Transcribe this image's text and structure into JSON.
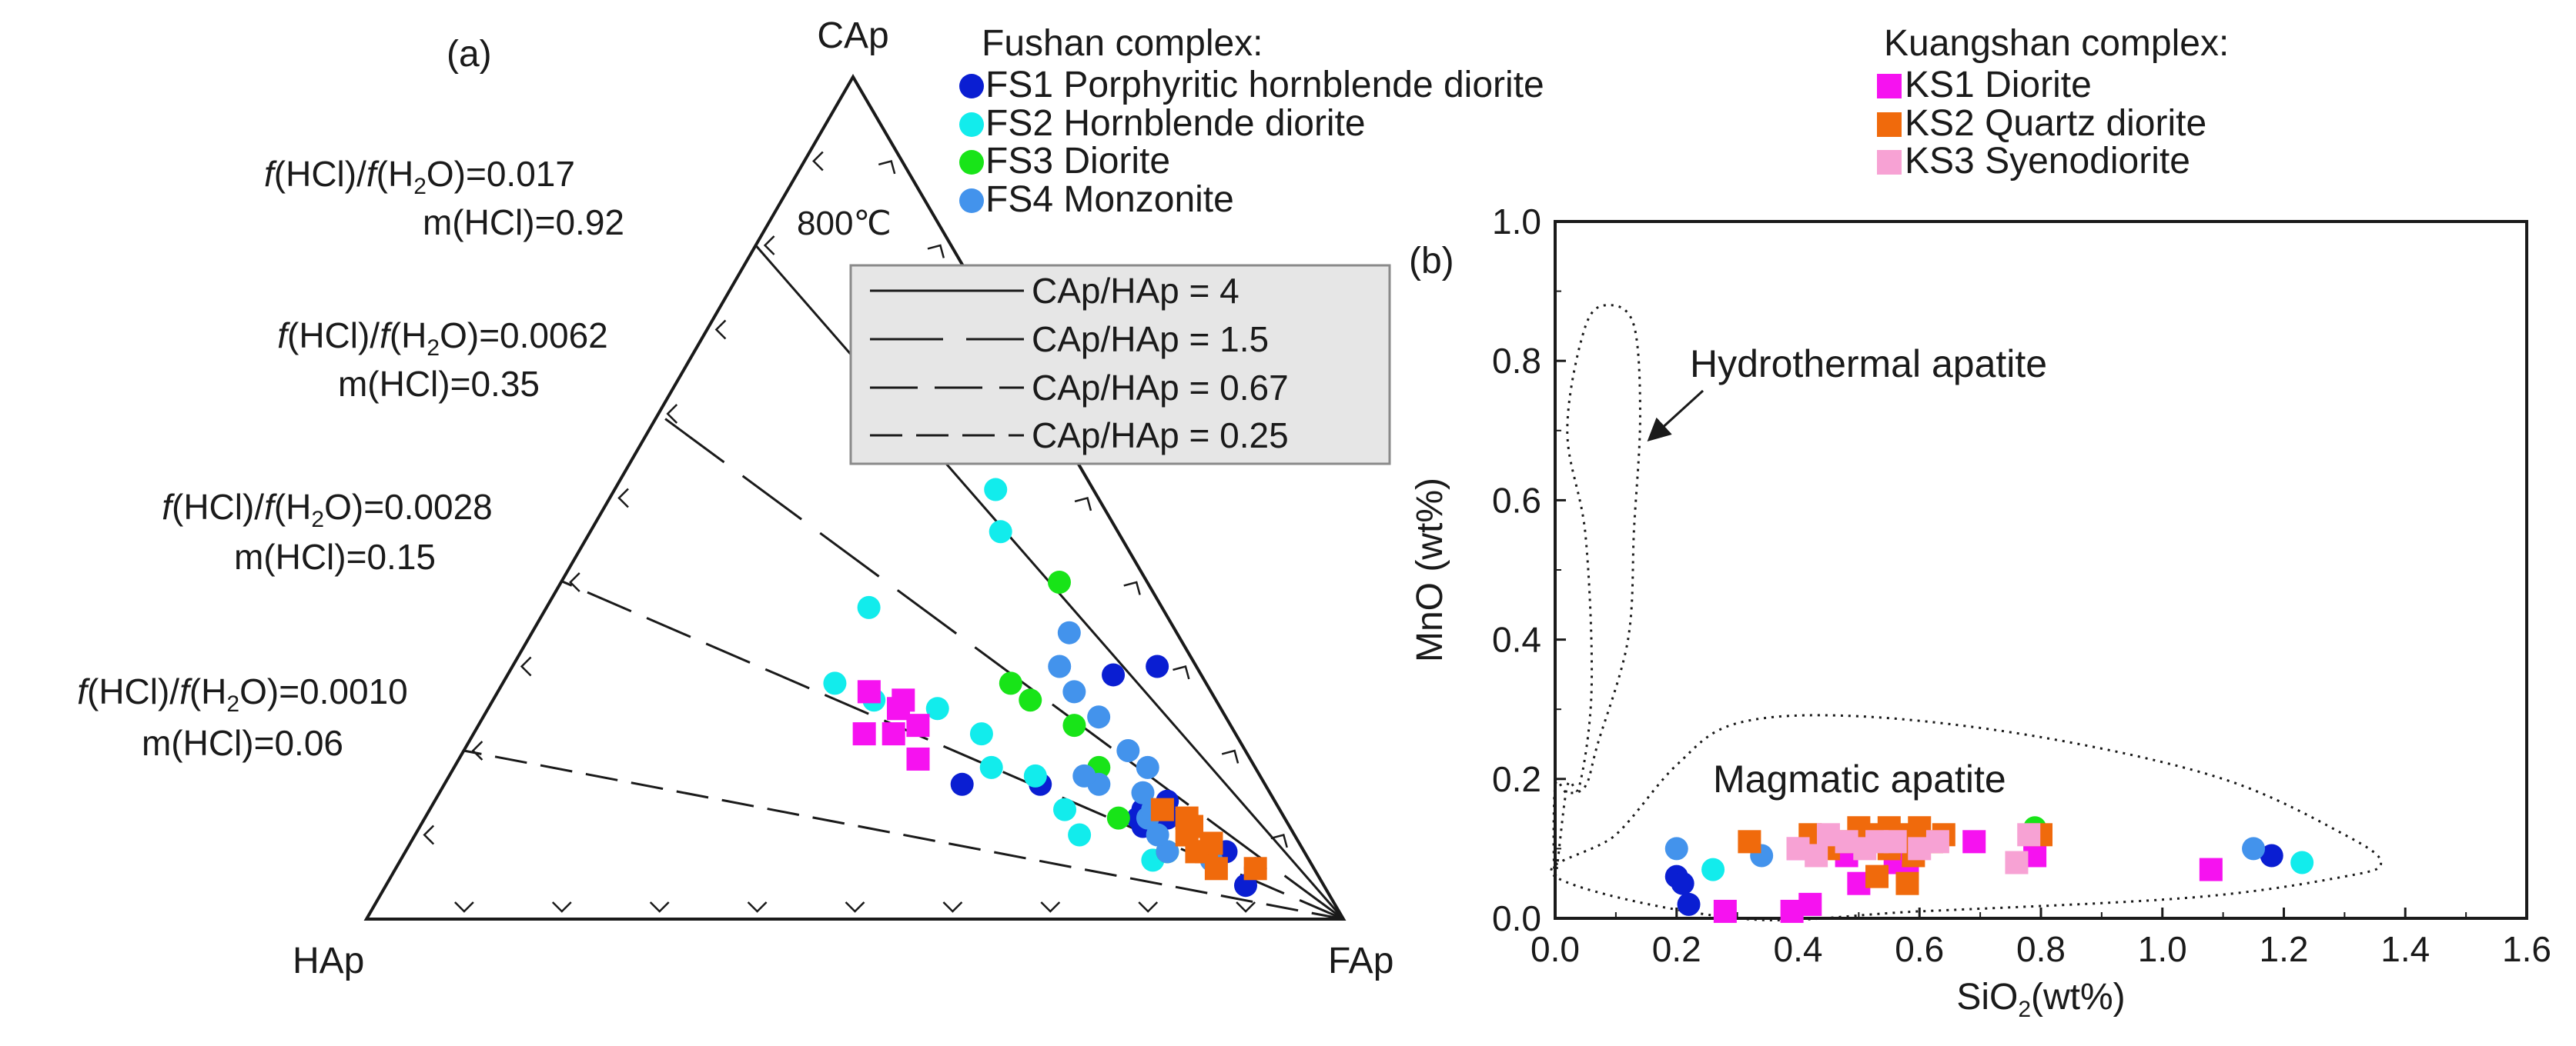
{
  "colors": {
    "FS1": "#0a1ed2",
    "FS2": "#12ecec",
    "FS3": "#18e418",
    "FS4": "#4393ec",
    "KS1": "#f612f0",
    "KS2": "#f06a0c",
    "KS3": "#f7a2d4",
    "legend_box": "#e6e6e6"
  },
  "chart_data": [
    {
      "type": "scatter",
      "subtype": "ternary",
      "panel_label": "(a)",
      "vertices": {
        "top": "CAp",
        "left": "HAp",
        "right": "FAp"
      },
      "temperature_label": "800℃",
      "isopleths": [
        {
          "ratio_label": "CAp/HAp = 4",
          "style": "solid",
          "fhcl_prefix": "f",
          "fhcl_mid": "(HCl)/",
          "fhcl_f2": "f",
          "fhcl_h": "(H",
          "fhcl_sub": "2",
          "fhcl_value": "O)=0.017",
          "m_label": "m(HCl)=0.92",
          "ratio": 4.0
        },
        {
          "ratio_label": "CAp/HAp = 1.5",
          "style": "dash-long",
          "fhcl_prefix": "f",
          "fhcl_mid": "(HCl)/",
          "fhcl_f2": "f",
          "fhcl_h": "(H",
          "fhcl_sub": "2",
          "fhcl_value": "O)=0.0062",
          "m_label": "m(HCl)=0.35",
          "ratio": 1.5
        },
        {
          "ratio_label": "CAp/HAp = 0.67",
          "style": "dash-medium",
          "fhcl_prefix": "f",
          "fhcl_mid": "(HCl)/",
          "fhcl_f2": "f",
          "fhcl_h": "(H",
          "fhcl_sub": "2",
          "fhcl_value": "O)=0.0028",
          "m_label": "m(HCl)=0.15",
          "ratio": 0.67
        },
        {
          "ratio_label": "CAp/HAp = 0.25",
          "style": "dash-short",
          "fhcl_prefix": "f",
          "fhcl_mid": "(HCl)/",
          "fhcl_f2": "f",
          "fhcl_h": "(H",
          "fhcl_sub": "2",
          "fhcl_value": "O)=0.0010",
          "m_label": "m(HCl)=0.06",
          "ratio": 0.25
        }
      ],
      "series": [
        {
          "name": "FS1",
          "marker": "circle",
          "points": [
            [
              0.04,
              0.08
            ],
            [
              0.06,
              0.06
            ],
            [
              0.08,
              0.08
            ],
            [
              0.11,
              0.15
            ],
            [
              0.12,
              0.12
            ],
            [
              0.12,
              0.15
            ],
            [
              0.14,
              0.11
            ],
            [
              0.13,
              0.14
            ],
            [
              0.16,
              0.23
            ],
            [
              0.16,
              0.31
            ],
            [
              0.29,
              0.09
            ],
            [
              0.3,
              0.04
            ]
          ]
        },
        {
          "name": "FS2",
          "marker": "circle",
          "points": [
            [
              0.07,
              0.16
            ],
            [
              0.1,
              0.22
            ],
            [
              0.13,
              0.22
            ],
            [
              0.17,
              0.23
            ],
            [
              0.18,
              0.27
            ],
            [
              0.22,
              0.26
            ],
            [
              0.25,
              0.29
            ],
            [
              0.26,
              0.35
            ],
            [
              0.28,
              0.38
            ],
            [
              0.37,
              0.3
            ],
            [
              0.46,
              0.12
            ],
            [
              0.51,
              0.1
            ]
          ]
        },
        {
          "name": "FS3",
          "marker": "circle",
          "points": [
            [
              0.08,
              0.14
            ],
            [
              0.12,
              0.17
            ],
            [
              0.18,
              0.16
            ],
            [
              0.23,
              0.16
            ],
            [
              0.26,
              0.19
            ],
            [
              0.28,
              0.2
            ],
            [
              0.4,
              0.09
            ]
          ]
        },
        {
          "name": "FS4",
          "marker": "circle",
          "points": [
            [
              0.07,
              0.1
            ],
            [
              0.08,
              0.14
            ],
            [
              0.1,
              0.14
            ],
            [
              0.12,
              0.14
            ],
            [
              0.13,
              0.13
            ],
            [
              0.15,
              0.13
            ],
            [
              0.16,
              0.17
            ],
            [
              0.17,
              0.18
            ],
            [
              0.18,
              0.11
            ],
            [
              0.2,
              0.12
            ],
            [
              0.24,
              0.13
            ],
            [
              0.27,
              0.14
            ],
            [
              0.3,
              0.14
            ],
            [
              0.34,
              0.11
            ]
          ]
        },
        {
          "name": "KS1",
          "marker": "square",
          "points": [
            [
              0.19,
              0.34
            ],
            [
              0.22,
              0.35
            ],
            [
              0.22,
              0.38
            ],
            [
              0.23,
              0.32
            ],
            [
              0.25,
              0.33
            ],
            [
              0.27,
              0.35
            ],
            [
              0.26,
              0.32
            ]
          ]
        },
        {
          "name": "KS2",
          "marker": "square",
          "points": [
            [
              0.06,
              0.1
            ],
            [
              0.06,
              0.06
            ],
            [
              0.08,
              0.1
            ],
            [
              0.08,
              0.11
            ],
            [
              0.09,
              0.09
            ],
            [
              0.1,
              0.11
            ],
            [
              0.11,
              0.1
            ],
            [
              0.12,
              0.1
            ],
            [
              0.13,
              0.12
            ]
          ]
        },
        {
          "name": "KS3",
          "marker": "square",
          "points": []
        }
      ]
    },
    {
      "type": "scatter",
      "panel_label": "(b)",
      "xlabel": "SiO",
      "xlabel_sub": "2",
      "xlabel_unit": "(wt%)",
      "ylabel": "MnO (wt%)",
      "xlim": [
        0.0,
        1.6
      ],
      "ylim": [
        0.0,
        1.0
      ],
      "xticks": [
        "0.0",
        "0.2",
        "0.4",
        "0.6",
        "0.8",
        "1.0",
        "1.2",
        "1.4",
        "1.6"
      ],
      "yticks": [
        "0.0",
        "0.2",
        "0.4",
        "0.6",
        "0.8",
        "1.0"
      ],
      "field_labels": {
        "hydrothermal": "Hydrothermal apatite",
        "magmatic": "Magmatic apatite"
      },
      "fields": {
        "hydrothermal": [
          [
            0.0,
            0.06
          ],
          [
            0.02,
            0.19
          ],
          [
            0.04,
            0.19
          ],
          [
            0.06,
            0.33
          ],
          [
            0.05,
            0.55
          ],
          [
            0.02,
            0.7
          ],
          [
            0.05,
            0.85
          ],
          [
            0.09,
            0.88
          ],
          [
            0.13,
            0.85
          ],
          [
            0.14,
            0.72
          ],
          [
            0.13,
            0.56
          ],
          [
            0.12,
            0.4
          ],
          [
            0.07,
            0.25
          ],
          [
            0.05,
            0.19
          ],
          [
            0.02,
            0.18
          ],
          [
            0.0,
            0.19
          ]
        ],
        "magmatic": [
          [
            0.0,
            0.06
          ],
          [
            0.1,
            0.12
          ],
          [
            0.2,
            0.22
          ],
          [
            0.3,
            0.28
          ],
          [
            0.5,
            0.29
          ],
          [
            0.8,
            0.26
          ],
          [
            1.1,
            0.2
          ],
          [
            1.3,
            0.12
          ],
          [
            1.36,
            0.08
          ],
          [
            1.3,
            0.06
          ],
          [
            1.05,
            0.03
          ],
          [
            0.6,
            0.01
          ],
          [
            0.3,
            0.0
          ]
        ]
      },
      "series": [
        {
          "name": "FS1",
          "marker": "circle",
          "points": [
            [
              0.2,
              0.06
            ],
            [
              0.21,
              0.05
            ],
            [
              0.22,
              0.02
            ],
            [
              1.18,
              0.09
            ]
          ]
        },
        {
          "name": "FS2",
          "marker": "circle",
          "points": [
            [
              0.26,
              0.07
            ],
            [
              1.23,
              0.08
            ]
          ]
        },
        {
          "name": "FS3",
          "marker": "circle",
          "points": [
            [
              0.79,
              0.13
            ]
          ]
        },
        {
          "name": "FS4",
          "marker": "circle",
          "points": [
            [
              0.2,
              0.1
            ],
            [
              0.34,
              0.09
            ],
            [
              1.15,
              0.1
            ]
          ]
        },
        {
          "name": "KS1",
          "marker": "square",
          "points": [
            [
              0.28,
              0.01
            ],
            [
              0.39,
              0.01
            ],
            [
              0.42,
              0.02
            ],
            [
              0.5,
              0.05
            ],
            [
              0.56,
              0.08
            ],
            [
              0.58,
              0.07
            ],
            [
              0.69,
              0.11
            ],
            [
              0.79,
              0.09
            ],
            [
              1.08,
              0.07
            ],
            [
              0.4,
              0.1
            ],
            [
              0.48,
              0.09
            ]
          ]
        },
        {
          "name": "KS2",
          "marker": "square",
          "points": [
            [
              0.32,
              0.11
            ],
            [
              0.42,
              0.12
            ],
            [
              0.45,
              0.1
            ],
            [
              0.47,
              0.11
            ],
            [
              0.5,
              0.13
            ],
            [
              0.52,
              0.12
            ],
            [
              0.55,
              0.1
            ],
            [
              0.55,
              0.13
            ],
            [
              0.57,
              0.12
            ],
            [
              0.59,
              0.09
            ],
            [
              0.6,
              0.13
            ],
            [
              0.62,
              0.11
            ],
            [
              0.64,
              0.12
            ],
            [
              0.8,
              0.12
            ],
            [
              0.53,
              0.06
            ],
            [
              0.58,
              0.05
            ]
          ]
        },
        {
          "name": "KS3",
          "marker": "square",
          "points": [
            [
              0.4,
              0.1
            ],
            [
              0.43,
              0.09
            ],
            [
              0.45,
              0.12
            ],
            [
              0.48,
              0.11
            ],
            [
              0.51,
              0.1
            ],
            [
              0.53,
              0.11
            ],
            [
              0.56,
              0.11
            ],
            [
              0.6,
              0.1
            ],
            [
              0.63,
              0.11
            ],
            [
              0.78,
              0.12
            ],
            [
              0.76,
              0.08
            ]
          ]
        }
      ]
    }
  ],
  "legend": {
    "fushan_title": "Fushan complex:",
    "kuangshan_title": "Kuangshan complex:",
    "fushan": [
      {
        "key": "FS1",
        "label": "FS1 Porphyritic hornblende diorite"
      },
      {
        "key": "FS2",
        "label": "FS2 Hornblende diorite"
      },
      {
        "key": "FS3",
        "label": "FS3 Diorite"
      },
      {
        "key": "FS4",
        "label": "FS4 Monzonite"
      }
    ],
    "kuangshan": [
      {
        "key": "KS1",
        "label": "KS1 Diorite"
      },
      {
        "key": "KS2",
        "label": "KS2 Quartz diorite"
      },
      {
        "key": "KS3",
        "label": "KS3 Syenodiorite"
      }
    ]
  }
}
